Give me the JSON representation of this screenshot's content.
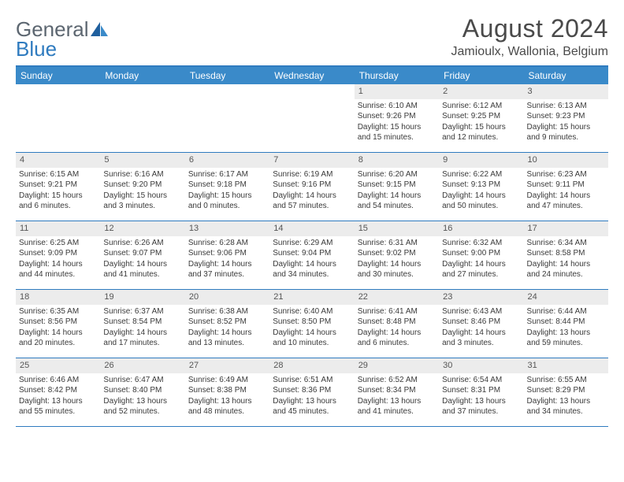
{
  "brand": {
    "line1": "General",
    "line2": "Blue"
  },
  "title": "August 2024",
  "location": "Jamioulx, Wallonia, Belgium",
  "colors": {
    "header_bar": "#3a8ac9",
    "rule": "#2f7bbf",
    "daynum_bg": "#ececec",
    "text": "#3a3a3a"
  },
  "day_names": [
    "Sunday",
    "Monday",
    "Tuesday",
    "Wednesday",
    "Thursday",
    "Friday",
    "Saturday"
  ],
  "weeks": [
    [
      null,
      null,
      null,
      null,
      {
        "n": "1",
        "sunrise": "6:10 AM",
        "sunset": "9:26 PM",
        "daylight": "15 hours and 15 minutes."
      },
      {
        "n": "2",
        "sunrise": "6:12 AM",
        "sunset": "9:25 PM",
        "daylight": "15 hours and 12 minutes."
      },
      {
        "n": "3",
        "sunrise": "6:13 AM",
        "sunset": "9:23 PM",
        "daylight": "15 hours and 9 minutes."
      }
    ],
    [
      {
        "n": "4",
        "sunrise": "6:15 AM",
        "sunset": "9:21 PM",
        "daylight": "15 hours and 6 minutes."
      },
      {
        "n": "5",
        "sunrise": "6:16 AM",
        "sunset": "9:20 PM",
        "daylight": "15 hours and 3 minutes."
      },
      {
        "n": "6",
        "sunrise": "6:17 AM",
        "sunset": "9:18 PM",
        "daylight": "15 hours and 0 minutes."
      },
      {
        "n": "7",
        "sunrise": "6:19 AM",
        "sunset": "9:16 PM",
        "daylight": "14 hours and 57 minutes."
      },
      {
        "n": "8",
        "sunrise": "6:20 AM",
        "sunset": "9:15 PM",
        "daylight": "14 hours and 54 minutes."
      },
      {
        "n": "9",
        "sunrise": "6:22 AM",
        "sunset": "9:13 PM",
        "daylight": "14 hours and 50 minutes."
      },
      {
        "n": "10",
        "sunrise": "6:23 AM",
        "sunset": "9:11 PM",
        "daylight": "14 hours and 47 minutes."
      }
    ],
    [
      {
        "n": "11",
        "sunrise": "6:25 AM",
        "sunset": "9:09 PM",
        "daylight": "14 hours and 44 minutes."
      },
      {
        "n": "12",
        "sunrise": "6:26 AM",
        "sunset": "9:07 PM",
        "daylight": "14 hours and 41 minutes."
      },
      {
        "n": "13",
        "sunrise": "6:28 AM",
        "sunset": "9:06 PM",
        "daylight": "14 hours and 37 minutes."
      },
      {
        "n": "14",
        "sunrise": "6:29 AM",
        "sunset": "9:04 PM",
        "daylight": "14 hours and 34 minutes."
      },
      {
        "n": "15",
        "sunrise": "6:31 AM",
        "sunset": "9:02 PM",
        "daylight": "14 hours and 30 minutes."
      },
      {
        "n": "16",
        "sunrise": "6:32 AM",
        "sunset": "9:00 PM",
        "daylight": "14 hours and 27 minutes."
      },
      {
        "n": "17",
        "sunrise": "6:34 AM",
        "sunset": "8:58 PM",
        "daylight": "14 hours and 24 minutes."
      }
    ],
    [
      {
        "n": "18",
        "sunrise": "6:35 AM",
        "sunset": "8:56 PM",
        "daylight": "14 hours and 20 minutes."
      },
      {
        "n": "19",
        "sunrise": "6:37 AM",
        "sunset": "8:54 PM",
        "daylight": "14 hours and 17 minutes."
      },
      {
        "n": "20",
        "sunrise": "6:38 AM",
        "sunset": "8:52 PM",
        "daylight": "14 hours and 13 minutes."
      },
      {
        "n": "21",
        "sunrise": "6:40 AM",
        "sunset": "8:50 PM",
        "daylight": "14 hours and 10 minutes."
      },
      {
        "n": "22",
        "sunrise": "6:41 AM",
        "sunset": "8:48 PM",
        "daylight": "14 hours and 6 minutes."
      },
      {
        "n": "23",
        "sunrise": "6:43 AM",
        "sunset": "8:46 PM",
        "daylight": "14 hours and 3 minutes."
      },
      {
        "n": "24",
        "sunrise": "6:44 AM",
        "sunset": "8:44 PM",
        "daylight": "13 hours and 59 minutes."
      }
    ],
    [
      {
        "n": "25",
        "sunrise": "6:46 AM",
        "sunset": "8:42 PM",
        "daylight": "13 hours and 55 minutes."
      },
      {
        "n": "26",
        "sunrise": "6:47 AM",
        "sunset": "8:40 PM",
        "daylight": "13 hours and 52 minutes."
      },
      {
        "n": "27",
        "sunrise": "6:49 AM",
        "sunset": "8:38 PM",
        "daylight": "13 hours and 48 minutes."
      },
      {
        "n": "28",
        "sunrise": "6:51 AM",
        "sunset": "8:36 PM",
        "daylight": "13 hours and 45 minutes."
      },
      {
        "n": "29",
        "sunrise": "6:52 AM",
        "sunset": "8:34 PM",
        "daylight": "13 hours and 41 minutes."
      },
      {
        "n": "30",
        "sunrise": "6:54 AM",
        "sunset": "8:31 PM",
        "daylight": "13 hours and 37 minutes."
      },
      {
        "n": "31",
        "sunrise": "6:55 AM",
        "sunset": "8:29 PM",
        "daylight": "13 hours and 34 minutes."
      }
    ]
  ],
  "labels": {
    "sunrise": "Sunrise:",
    "sunset": "Sunset:",
    "daylight": "Daylight:"
  }
}
